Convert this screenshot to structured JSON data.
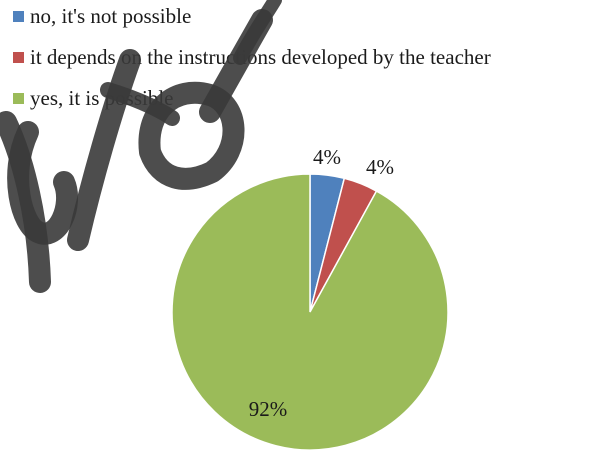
{
  "chart_data": {
    "type": "pie",
    "title": "",
    "series": [
      {
        "name": "no, it's not possible",
        "value": 4,
        "label": "4%",
        "color": "#4f81bd"
      },
      {
        "name": "it depends on the instructions developed by the teacher",
        "value": 4,
        "label": "4%",
        "color": "#c0504d"
      },
      {
        "name": "yes, it is possible",
        "value": 92,
        "label": "92%",
        "color": "#9bbb59"
      }
    ],
    "legend_placement": "top-left",
    "start_angle": "12 o'clock, clockwise"
  },
  "watermark": {
    "color": "#3a3a3a"
  }
}
